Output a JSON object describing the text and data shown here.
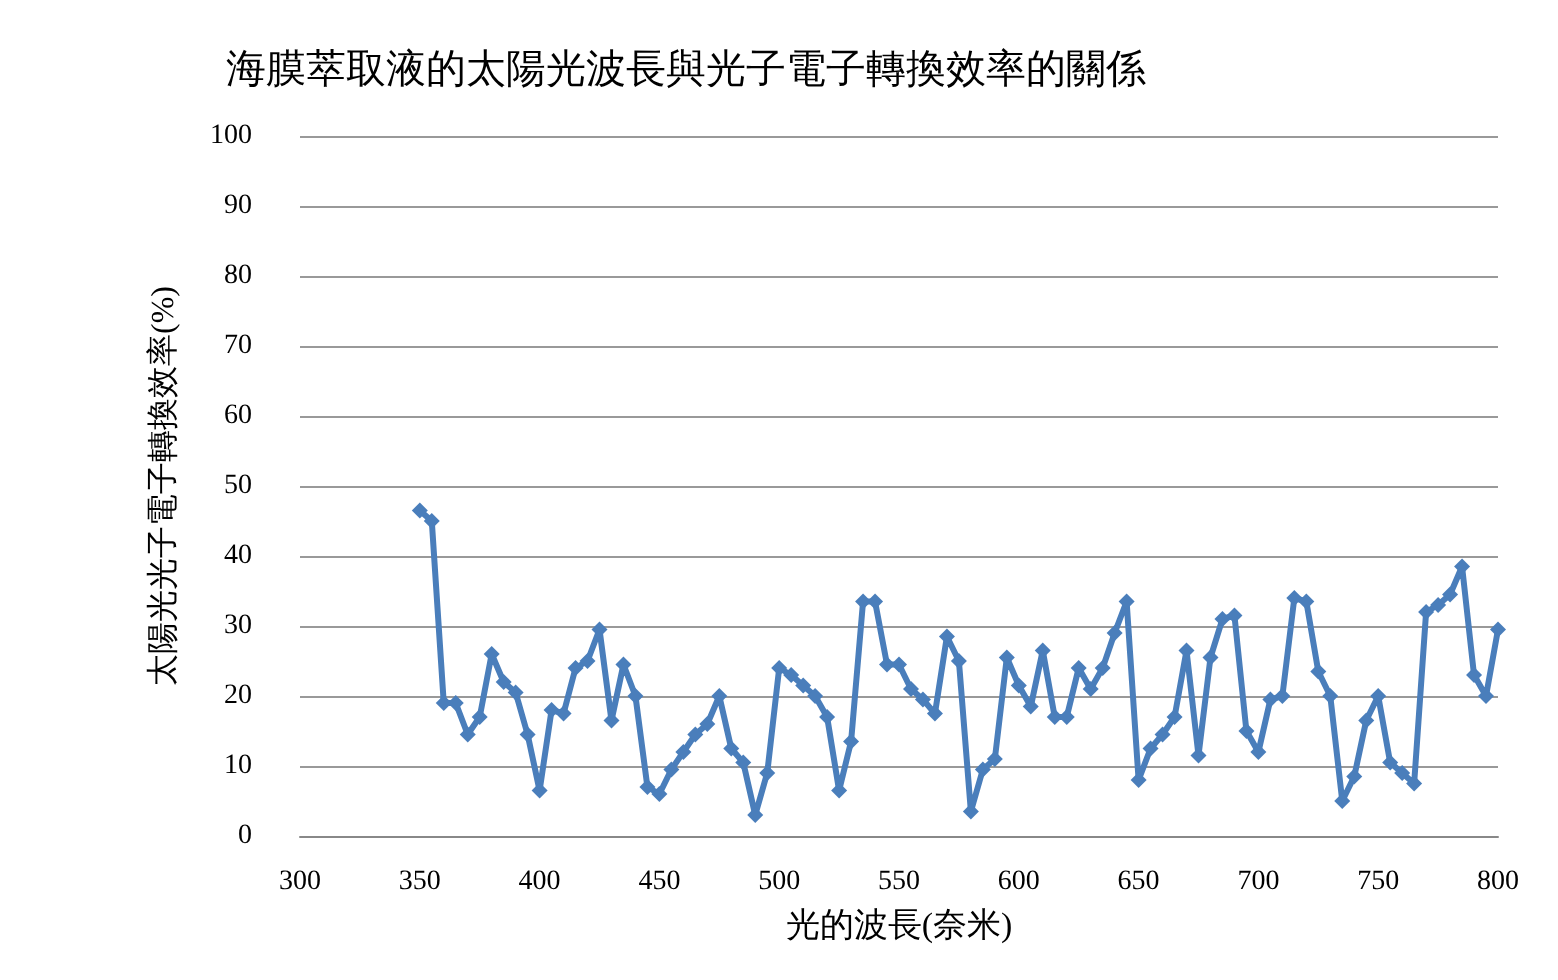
{
  "chart_data": {
    "type": "line",
    "title": "海膜萃取液的太陽光波長與光子電子轉換效率的關係",
    "xlabel": "光的波長(奈米)",
    "ylabel": "太陽光光子電子轉換效率(%)",
    "x": [
      350,
      355,
      360,
      365,
      370,
      375,
      380,
      385,
      390,
      395,
      400,
      405,
      410,
      415,
      420,
      425,
      430,
      435,
      440,
      445,
      450,
      455,
      460,
      465,
      470,
      475,
      480,
      485,
      490,
      495,
      500,
      505,
      510,
      515,
      520,
      525,
      530,
      535,
      540,
      545,
      550,
      555,
      560,
      565,
      570,
      575,
      580,
      585,
      590,
      595,
      600,
      605,
      610,
      615,
      620,
      625,
      630,
      635,
      640,
      645,
      650,
      655,
      660,
      665,
      670,
      675,
      680,
      685,
      690,
      695,
      700,
      705,
      710,
      715,
      720,
      725,
      730,
      735,
      740,
      745,
      750,
      755,
      760,
      765,
      770,
      775,
      780,
      785,
      790,
      795,
      800
    ],
    "series": [
      {
        "color": "#4a7ebb",
        "values": [
          46.5,
          45,
          19,
          19,
          14.5,
          17,
          26,
          22,
          20.5,
          14.5,
          6.5,
          18,
          17.5,
          24,
          25,
          29.5,
          16.5,
          24.5,
          20,
          7,
          6,
          9.5,
          12,
          14.5,
          16,
          20,
          12.5,
          10.5,
          3,
          9,
          24,
          23,
          21.5,
          20,
          17,
          6.5,
          13.5,
          33.5,
          33.5,
          24.5,
          24.5,
          21,
          19.5,
          17.5,
          28.5,
          25,
          3.5,
          9.5,
          11,
          25.5,
          21.5,
          18.5,
          26.5,
          17,
          17,
          24,
          21,
          24,
          29,
          33.5,
          8,
          12.5,
          14.5,
          17,
          26.5,
          11.5,
          25.5,
          31,
          31.5,
          15,
          12,
          19.5,
          20,
          34,
          33.5,
          23.5,
          20,
          5,
          8.5,
          16.5,
          20,
          10.5,
          9,
          7.5,
          32,
          33,
          34.5,
          38.5,
          23,
          20,
          29.5
        ]
      }
    ],
    "xlim": [
      300,
      800
    ],
    "xticks": [
      300,
      350,
      400,
      450,
      500,
      550,
      600,
      650,
      700,
      750,
      800
    ],
    "ylim": [
      0,
      100
    ],
    "yticks": [
      0,
      10,
      20,
      30,
      40,
      50,
      60,
      70,
      80,
      90,
      100
    ],
    "grid": "y",
    "marker": "diamond",
    "line_style": "solid"
  }
}
